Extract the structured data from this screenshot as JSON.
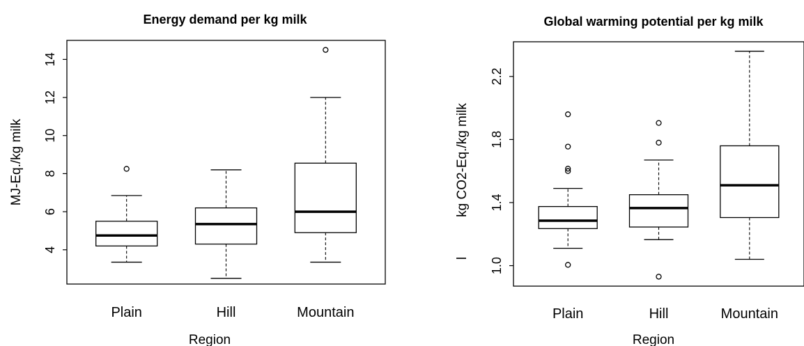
{
  "chart_data": [
    {
      "type": "box",
      "title": "Energy demand per kg milk",
      "xlabel": "Region",
      "ylabel": "MJ-Eq./kg milk",
      "categories": [
        "Plain",
        "Hill",
        "Mountain"
      ],
      "yticks": [
        "4",
        "6",
        "8",
        "10",
        "12",
        "14"
      ],
      "ylim": [
        2.2,
        15.0
      ],
      "grid": false,
      "boxes": [
        {
          "category": "Plain",
          "whisker_low": 3.35,
          "q1": 4.2,
          "median": 4.75,
          "q3": 5.5,
          "whisker_high": 6.85,
          "outliers": [
            8.25
          ]
        },
        {
          "category": "Hill",
          "whisker_low": 2.5,
          "q1": 4.3,
          "median": 5.35,
          "q3": 6.2,
          "whisker_high": 8.2,
          "outliers": []
        },
        {
          "category": "Mountain",
          "whisker_low": 3.35,
          "q1": 4.9,
          "median": 6.0,
          "q3": 8.55,
          "whisker_high": 12.0,
          "outliers": [
            14.5
          ]
        }
      ]
    },
    {
      "type": "box",
      "title": "Global warming potential per kg milk",
      "xlabel": "Region",
      "ylabel": "kg CO2-Eq./kg milk",
      "ylabel_prefix": "l",
      "categories": [
        "Plain",
        "Hill",
        "Mountain"
      ],
      "yticks": [
        "1.0",
        "1.4",
        "1.8",
        "2.2"
      ],
      "ylim": [
        0.87,
        2.42
      ],
      "grid": false,
      "boxes": [
        {
          "category": "Plain",
          "whisker_low": 1.11,
          "q1": 1.235,
          "median": 1.285,
          "q3": 1.375,
          "whisker_high": 1.49,
          "outliers": [
            1.005,
            1.6,
            1.615,
            1.755,
            1.96
          ]
        },
        {
          "category": "Hill",
          "whisker_low": 1.165,
          "q1": 1.245,
          "median": 1.365,
          "q3": 1.45,
          "whisker_high": 1.67,
          "outliers": [
            0.93,
            1.78,
            1.905
          ]
        },
        {
          "category": "Mountain",
          "whisker_low": 1.04,
          "q1": 1.305,
          "median": 1.51,
          "q3": 1.76,
          "whisker_high": 2.36,
          "outliers": []
        }
      ]
    }
  ]
}
